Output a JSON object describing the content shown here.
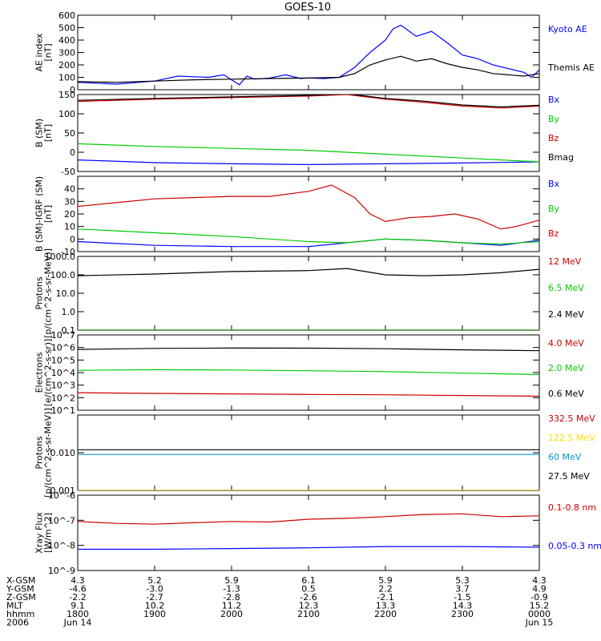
{
  "title": "GOES-10",
  "orbit_rows": {
    "labels": [
      "X-GSM",
      "Y-GSM",
      "Z-GSM",
      "MLT",
      "hhmm",
      "2006"
    ],
    "columns": [
      {
        "values": [
          "4.3",
          "-4.6",
          "-2.2",
          "9.1",
          "1800",
          "Jun 14"
        ]
      },
      {
        "values": [
          "5.2",
          "-3.0",
          "-2.7",
          "10.2",
          "1900",
          ""
        ]
      },
      {
        "values": [
          "5.9",
          "-1.3",
          "-2.8",
          "11.2",
          "2000",
          ""
        ]
      },
      {
        "values": [
          "6.1",
          "0.5",
          "-2.6",
          "12.3",
          "2100",
          ""
        ]
      },
      {
        "values": [
          "5.9",
          "2.2",
          "-2.1",
          "13.3",
          "2200",
          ""
        ]
      },
      {
        "values": [
          "5.3",
          "3.7",
          "-1.5",
          "14.3",
          "2300",
          ""
        ]
      },
      {
        "values": [
          "4.3",
          "4.9",
          "-0.9",
          "15.2",
          "0000",
          "Jun 15"
        ]
      }
    ]
  },
  "colors": {
    "blue": "#0000ff",
    "green": "#00cc00",
    "red": "#cc0000",
    "black": "#000000",
    "yellow": "#ffdd00",
    "cyan": "#0099cc"
  },
  "chart_data": [
    {
      "type": "line",
      "ylabel": "AE index\n[nT]",
      "ylim": [
        0,
        600
      ],
      "scale": "linear",
      "ticks": [
        "0",
        "100",
        "200",
        "300",
        "400",
        "500",
        "600"
      ],
      "tick_values": [
        0,
        100,
        200,
        300,
        400,
        500,
        600
      ],
      "xlim": [
        18,
        24
      ],
      "series": [
        {
          "name": "Kyoto AE",
          "color": "blue",
          "x": [
            18,
            18.5,
            19,
            19.3,
            19.7,
            19.9,
            20.0,
            20.1,
            20.2,
            20.3,
            20.5,
            20.7,
            20.9,
            21.0,
            21.2,
            21.4,
            21.6,
            21.8,
            22.0,
            22.1,
            22.2,
            22.4,
            22.6,
            22.8,
            23.0,
            23.2,
            23.4,
            23.6,
            23.8,
            23.9,
            24.0
          ],
          "y": [
            60,
            45,
            70,
            110,
            100,
            120,
            80,
            40,
            110,
            85,
            95,
            120,
            90,
            95,
            90,
            100,
            180,
            300,
            400,
            490,
            520,
            430,
            470,
            380,
            280,
            250,
            200,
            170,
            140,
            100,
            160
          ]
        },
        {
          "name": "Themis AE",
          "color": "black",
          "x": [
            18,
            18.5,
            19,
            19.5,
            20,
            20.5,
            21,
            21.4,
            21.6,
            21.8,
            22.0,
            22.2,
            22.4,
            22.6,
            22.8,
            23.0,
            23.2,
            23.4,
            23.6,
            23.8,
            24.0
          ],
          "y": [
            65,
            60,
            70,
            80,
            85,
            90,
            95,
            100,
            130,
            200,
            240,
            270,
            230,
            250,
            210,
            180,
            160,
            130,
            120,
            110,
            130
          ]
        }
      ]
    },
    {
      "type": "line",
      "ylabel": "B (SM)\n[nT]",
      "ylim": [
        -50,
        150
      ],
      "scale": "linear",
      "ticks": [
        "-50",
        "0",
        "50",
        "100",
        "150"
      ],
      "tick_values": [
        -50,
        0,
        50,
        100,
        150
      ],
      "xlim": [
        18,
        24
      ],
      "series": [
        {
          "name": "Bx",
          "color": "blue",
          "x": [
            18,
            19,
            20,
            21,
            22,
            23,
            24
          ],
          "y": [
            -20,
            -27,
            -30,
            -32,
            -30,
            -28,
            -25
          ]
        },
        {
          "name": "By",
          "color": "green",
          "x": [
            18,
            19,
            20,
            21,
            22,
            23,
            24
          ],
          "y": [
            22,
            15,
            10,
            5,
            -5,
            -15,
            -25
          ]
        },
        {
          "name": "Bz",
          "color": "red",
          "x": [
            18,
            19,
            20,
            21,
            21.5,
            22,
            22.5,
            23,
            23.5,
            24
          ],
          "y": [
            132,
            138,
            142,
            146,
            150,
            138,
            130,
            120,
            115,
            120
          ]
        },
        {
          "name": "Bmag",
          "color": "black",
          "x": [
            18,
            19,
            20,
            21,
            21.5,
            22,
            22.5,
            23,
            23.5,
            24
          ],
          "y": [
            135,
            140,
            144,
            148,
            152,
            140,
            133,
            123,
            118,
            122
          ]
        }
      ]
    },
    {
      "type": "line",
      "ylabel": "B (SM)-IGRF (SM)\n[nT]",
      "ylim": [
        -10,
        50
      ],
      "scale": "linear",
      "ticks": [
        "-10",
        "0",
        "10",
        "20",
        "30",
        "40"
      ],
      "tick_values": [
        -10,
        0,
        10,
        20,
        30,
        40
      ],
      "xlim": [
        18,
        24
      ],
      "series": [
        {
          "name": "Bx",
          "color": "blue",
          "x": [
            18,
            19,
            20,
            21,
            21.5,
            22,
            22.5,
            23,
            23.5,
            24
          ],
          "y": [
            -2,
            -5,
            -6,
            -6,
            -3,
            0,
            -1,
            -3,
            -5,
            -1
          ]
        },
        {
          "name": "By",
          "color": "green",
          "x": [
            18,
            19,
            20,
            21,
            21.5,
            22,
            22.5,
            23,
            23.5,
            24
          ],
          "y": [
            8,
            5,
            2,
            -2,
            -3,
            0,
            -1,
            -3,
            -4,
            -2
          ]
        },
        {
          "name": "Bz",
          "color": "red",
          "x": [
            18,
            18.5,
            19,
            19.5,
            20,
            20.5,
            21,
            21.3,
            21.6,
            21.8,
            22,
            22.3,
            22.6,
            22.9,
            23.2,
            23.5,
            23.7,
            24
          ],
          "y": [
            26,
            29,
            32,
            33,
            34,
            34,
            38,
            43,
            33,
            20,
            14,
            17,
            18,
            20,
            16,
            8,
            10,
            15
          ]
        }
      ]
    },
    {
      "type": "line",
      "ylabel": "Protons\n[p/(cm^2-s-sr-MeV)]",
      "ylim": [
        0.1,
        1000
      ],
      "scale": "log",
      "ticks": [
        "0.1",
        "1.0",
        "10.0",
        "100.0",
        "1000.0"
      ],
      "tick_values": [
        0.1,
        1,
        10,
        100,
        1000
      ],
      "xlim": [
        18,
        24
      ],
      "series": [
        {
          "name": "12 MeV",
          "color": "red",
          "x": [
            18,
            24
          ],
          "y": [
            0.1,
            0.1
          ]
        },
        {
          "name": "6.5 MeV",
          "color": "green",
          "x": [
            18,
            24
          ],
          "y": [
            0.1,
            0.1
          ]
        },
        {
          "name": "2.4 MeV",
          "color": "black",
          "x": [
            18,
            19,
            20,
            21,
            21.5,
            22,
            22.5,
            23,
            23.5,
            24
          ],
          "y": [
            90,
            110,
            150,
            170,
            220,
            100,
            90,
            100,
            130,
            200
          ]
        }
      ]
    },
    {
      "type": "line",
      "ylabel": "Electrons\n[e/(cm^2-s-sr)]",
      "ylim": [
        10,
        10000000
      ],
      "scale": "log",
      "ticks": [
        "10^1",
        "10^2",
        "10^3",
        "10^4",
        "10^5",
        "10^6",
        "10^7"
      ],
      "tick_values": [
        10,
        100,
        1000,
        10000,
        100000,
        1000000,
        10000000
      ],
      "xlim": [
        18,
        24
      ],
      "series": [
        {
          "name": "4.0 MeV",
          "color": "red",
          "x": [
            18,
            19,
            20,
            21,
            22,
            23,
            24
          ],
          "y": [
            250,
            220,
            200,
            180,
            170,
            150,
            130
          ]
        },
        {
          "name": "2.0 MeV",
          "color": "green",
          "x": [
            18,
            19,
            20,
            21,
            22,
            23,
            24
          ],
          "y": [
            15000,
            17000,
            16000,
            14000,
            12000,
            9000,
            7000
          ]
        },
        {
          "name": "0.6 MeV",
          "color": "black",
          "x": [
            18,
            19,
            20,
            21,
            22,
            23,
            24
          ],
          "y": [
            700000,
            850000,
            900000,
            880000,
            800000,
            650000,
            550000
          ]
        }
      ]
    },
    {
      "type": "line",
      "ylabel": "Protons\n[p/(cm^2-s-sr-MeV)]",
      "ylim": [
        0.001,
        0.1
      ],
      "scale": "log",
      "ticks": [
        "0.001",
        "0.010"
      ],
      "tick_values": [
        0.001,
        0.01
      ],
      "xlim": [
        18,
        24
      ],
      "series": [
        {
          "name": "332.5 MeV",
          "color": "red",
          "x": [
            18,
            24
          ],
          "y": [
            0.001,
            0.001
          ]
        },
        {
          "name": "122.5 MeV",
          "color": "yellow",
          "x": [
            18,
            24
          ],
          "y": [
            0.001,
            0.001
          ]
        },
        {
          "name": "60 MeV",
          "color": "cyan",
          "x": [
            18,
            24
          ],
          "y": [
            0.009,
            0.009
          ]
        },
        {
          "name": "27.5 MeV",
          "color": "black",
          "x": [
            18,
            24
          ],
          "y": [
            0.012,
            0.012
          ]
        }
      ]
    },
    {
      "type": "line",
      "ylabel": "Xray Flux\n[W/m^2]",
      "ylim": [
        1e-09,
        1e-06
      ],
      "scale": "log",
      "ticks": [
        "10^-9",
        "10^-8",
        "10^-7",
        "10^-6"
      ],
      "tick_values": [
        1e-09,
        1e-08,
        1e-07,
        1e-06
      ],
      "xlim": [
        18,
        24
      ],
      "series": [
        {
          "name": "0.1-0.8 nm",
          "color": "red",
          "x": [
            18,
            18.5,
            19,
            19.5,
            20,
            20.5,
            21,
            21.5,
            22,
            22.5,
            23,
            23.5,
            24
          ],
          "y": [
            9e-08,
            7.5e-08,
            7e-08,
            8e-08,
            9e-08,
            8.5e-08,
            1.1e-07,
            1.2e-07,
            1.4e-07,
            1.7e-07,
            1.8e-07,
            1.4e-07,
            1.5e-07
          ]
        },
        {
          "name": "0.05-0.3 nm",
          "color": "blue",
          "x": [
            18,
            19,
            20,
            21,
            22,
            23,
            24
          ],
          "y": [
            7e-09,
            7e-09,
            7.5e-09,
            8e-09,
            9e-09,
            9e-09,
            8.5e-09
          ]
        }
      ]
    }
  ]
}
